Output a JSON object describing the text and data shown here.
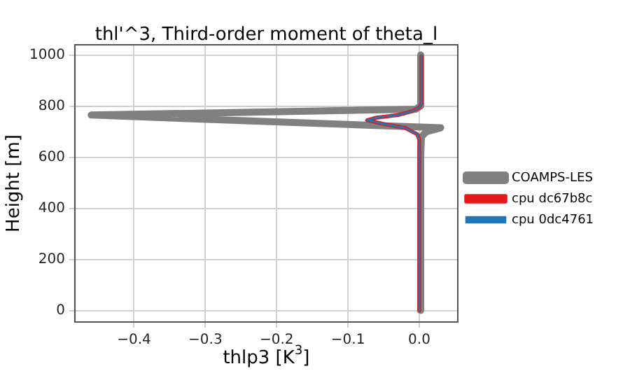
{
  "chart_data": {
    "type": "line",
    "title": "thl'^3, Third-order moment of theta_l",
    "xlabel": "thlp3 [K$^{3}$]",
    "ylabel": "Height [m]",
    "xlim": [
      -0.483,
      0.054
    ],
    "ylim": [
      -45,
      1040
    ],
    "xticks": [
      {
        "value": -0.4,
        "label": "−0.4"
      },
      {
        "value": -0.3,
        "label": "−0.3"
      },
      {
        "value": -0.2,
        "label": "−0.2"
      },
      {
        "value": -0.1,
        "label": "−0.1"
      },
      {
        "value": 0,
        "label": "0.0"
      }
    ],
    "yticks": [
      0,
      200,
      400,
      600,
      800,
      1000
    ],
    "grid": true,
    "legend": "right",
    "marker": "none",
    "series": [
      {
        "name": "COAMPS-LES",
        "color": "#808080",
        "line_style": "solid",
        "x": [
          0.002,
          0.002,
          0.003,
          0.01,
          0.03,
          -0.46,
          -0.005,
          0.002,
          0.002
        ],
        "values": [
          0,
          600,
          680,
          700,
          715,
          765,
          788,
          800,
          1000
        ]
      },
      {
        "name": "cpu dc67b8c",
        "color": "#e41a1c",
        "line_style": "dashed",
        "x": [
          0,
          0,
          -0.003,
          -0.02,
          -0.05,
          -0.073,
          -0.06,
          -0.03,
          -0.01,
          0,
          0.003,
          0.003
        ],
        "values": [
          0,
          670,
          690,
          715,
          730,
          745,
          755,
          765,
          780,
          795,
          810,
          1000
        ]
      },
      {
        "name": "cpu 0dc4761",
        "color": "#1f77b4",
        "line_style": "solid",
        "x": [
          0,
          0,
          -0.003,
          -0.02,
          -0.05,
          -0.073,
          -0.06,
          -0.03,
          -0.01,
          0,
          0.003,
          0.003
        ],
        "values": [
          0,
          670,
          690,
          715,
          730,
          745,
          755,
          765,
          780,
          795,
          810,
          1000
        ]
      }
    ]
  }
}
